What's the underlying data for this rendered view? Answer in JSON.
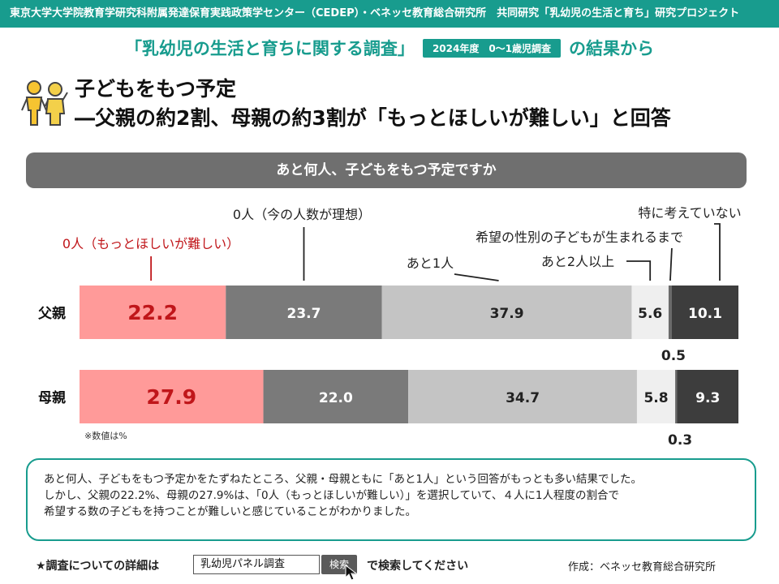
{
  "header": {
    "org_line": "東京大学大学院教育学研究科附属発達保育実践政策学センター（CEDEP）・ベネッセ教育総合研究所　共同研究「乳幼児の生活と育ち」研究プロジェクト",
    "survey_title": "「乳幼児の生活と育ちに関する調査」",
    "survey_badge": "2024年度　0～1歳児調査",
    "survey_suffix": "の結果から"
  },
  "headline": {
    "line1": "子どもをもつ予定",
    "line2": "―父親の約2割、母親の約3割が「もっとほしいが難しい」と回答"
  },
  "question": "あと何人、子どもをもつ予定ですか",
  "chart_data": {
    "type": "bar",
    "orientation": "horizontal-stacked-100",
    "categories": [
      "父親",
      "母親"
    ],
    "series": [
      {
        "name": "0人（もっとほしいが難しい）",
        "values": [
          22.2,
          27.9
        ],
        "color": "#ff9a99",
        "label_color": "#c0161a"
      },
      {
        "name": "0人（今の人数が理想）",
        "values": [
          23.7,
          22.0
        ],
        "color": "#7a7a7a",
        "label_color": "#ffffff"
      },
      {
        "name": "あと1人",
        "values": [
          37.9,
          34.7
        ],
        "color": "#c4c4c4",
        "label_color": "#222222"
      },
      {
        "name": "あと2人以上",
        "values": [
          5.6,
          5.8
        ],
        "color": "#efefef",
        "label_color": "#222222"
      },
      {
        "name": "希望の性別の子どもが生まれるまで",
        "values": [
          0.5,
          0.3
        ],
        "color": "#6a6a6a",
        "label_color": "#222222"
      },
      {
        "name": "特に考えていない",
        "values": [
          10.1,
          9.3
        ],
        "color": "#3d3d3d",
        "label_color": "#ffffff"
      }
    ],
    "xlim": [
      0,
      100
    ],
    "note": "※数値は%"
  },
  "summary": {
    "line1": "あと何人、子どもをもつ予定かをたずねたところ、父親・母親ともに「あと1人」という回答がもっとも多い結果でした。",
    "line2": "しかし、父親の22.2%、母親の27.9%は、「0人（もっとほしいが難しい）」を選択していて、４人に1人程度の割合で",
    "line3": "希望する数の子どもを持つことが難しいと感じていることがわかりました。"
  },
  "footer": {
    "lead": "★調査についての詳細は",
    "search_text": "乳幼児パネル調査",
    "search_button": "検索",
    "tail": "で検索してください",
    "credit": "作成：ベネッセ教育総合研究所"
  },
  "colors": {
    "accent": "#189c8e",
    "question_bg": "#6f6f6f"
  }
}
